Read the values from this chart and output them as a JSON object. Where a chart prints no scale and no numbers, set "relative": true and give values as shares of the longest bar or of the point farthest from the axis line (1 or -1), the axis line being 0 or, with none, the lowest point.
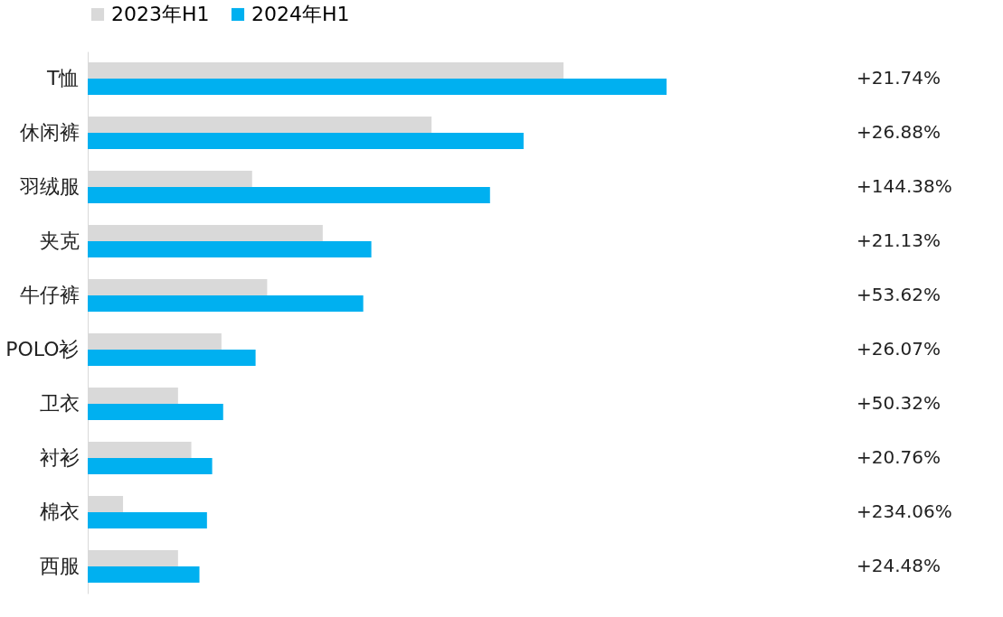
{
  "chart_data": {
    "type": "bar",
    "orientation": "horizontal",
    "relative": true,
    "legend": "top",
    "categories": [
      "T恤",
      "休闲裤",
      "羽绒服",
      "夹克",
      "牛仔裤",
      "POLO衫",
      "卫衣",
      "衬衫",
      "棉衣",
      "西服"
    ],
    "series": [
      {
        "name": "2023年H1",
        "color": "#d9d9d9",
        "values": [
          0.822,
          0.594,
          0.284,
          0.406,
          0.31,
          0.231,
          0.156,
          0.179,
          0.061,
          0.156
        ]
      },
      {
        "name": "2024年H1",
        "color": "#00b0f0",
        "values": [
          1,
          0.753,
          0.695,
          0.49,
          0.476,
          0.29,
          0.234,
          0.215,
          0.206,
          0.193
        ]
      }
    ],
    "annotations": [
      "+21.74%",
      "+26.88%",
      "+144.38%",
      "+21.13%",
      "+53.62%",
      "+26.07%",
      "+50.32%",
      "+20.76%",
      "+234.06%",
      "+24.48%"
    ]
  }
}
